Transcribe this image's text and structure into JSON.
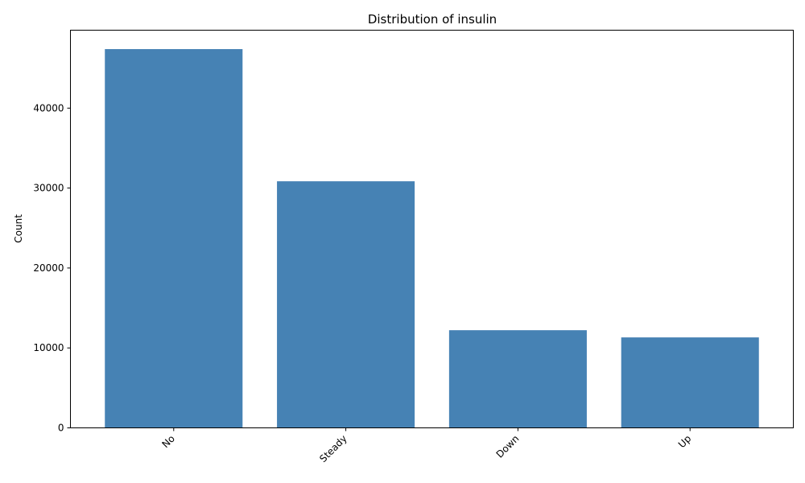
{
  "chart_data": {
    "type": "bar",
    "title": "Distribution of insulin",
    "xlabel": "",
    "ylabel": "Count",
    "categories": [
      "No",
      "Steady",
      "Down",
      "Up"
    ],
    "values": [
      47383,
      30849,
      12218,
      11316
    ],
    "ylim": [
      0,
      49750
    ],
    "yticks": [
      0,
      10000,
      20000,
      30000,
      40000
    ],
    "bar_color": "#4682b4",
    "grid": false,
    "legend": "none"
  }
}
